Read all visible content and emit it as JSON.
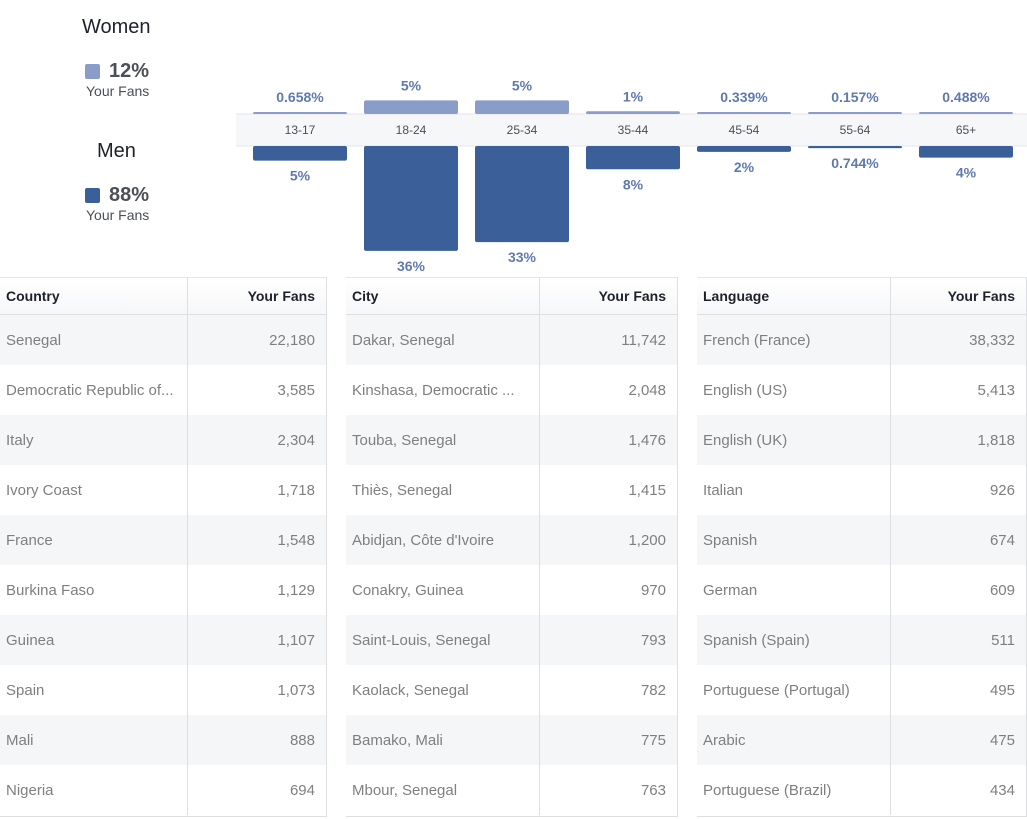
{
  "colors": {
    "women": "#8a9cc8",
    "men": "#3b5f98",
    "label": "#5f7aae"
  },
  "legend": {
    "women": {
      "title": "Women",
      "pct": "12%",
      "sub": "Your Fans"
    },
    "men": {
      "title": "Men",
      "pct": "88%",
      "sub": "Your Fans"
    }
  },
  "chart_data": {
    "type": "bar",
    "categories": [
      "13-17",
      "18-24",
      "25-34",
      "35-44",
      "45-54",
      "55-64",
      "65+"
    ],
    "series": [
      {
        "name": "Women",
        "values": [
          0.658,
          5,
          5,
          1,
          0.339,
          0.157,
          0.488
        ],
        "labels": [
          "0.658%",
          "5%",
          "5%",
          "1%",
          "0.339%",
          "0.157%",
          "0.488%"
        ]
      },
      {
        "name": "Men",
        "values": [
          5,
          36,
          33,
          8,
          2,
          0.744,
          4
        ],
        "labels": [
          "5%",
          "36%",
          "33%",
          "8%",
          "2%",
          "0.744%",
          "4%"
        ]
      }
    ]
  },
  "tables": [
    {
      "headers": [
        "Country",
        "Your Fans"
      ],
      "rows": [
        [
          "Senegal",
          "22,180"
        ],
        [
          "Democratic Republic of...",
          "3,585"
        ],
        [
          "Italy",
          "2,304"
        ],
        [
          "Ivory Coast",
          "1,718"
        ],
        [
          "France",
          "1,548"
        ],
        [
          "Burkina Faso",
          "1,129"
        ],
        [
          "Guinea",
          "1,107"
        ],
        [
          "Spain",
          "1,073"
        ],
        [
          "Mali",
          "888"
        ],
        [
          "Nigeria",
          "694"
        ]
      ]
    },
    {
      "headers": [
        "City",
        "Your Fans"
      ],
      "rows": [
        [
          "Dakar, Senegal",
          "11,742"
        ],
        [
          "Kinshasa, Democratic ...",
          "2,048"
        ],
        [
          "Touba, Senegal",
          "1,476"
        ],
        [
          "Thiès, Senegal",
          "1,415"
        ],
        [
          "Abidjan, Côte d'Ivoire",
          "1,200"
        ],
        [
          "Conakry, Guinea",
          "970"
        ],
        [
          "Saint-Louis, Senegal",
          "793"
        ],
        [
          "Kaolack, Senegal",
          "782"
        ],
        [
          "Bamako, Mali",
          "775"
        ],
        [
          "Mbour, Senegal",
          "763"
        ]
      ]
    },
    {
      "headers": [
        "Language",
        "Your Fans"
      ],
      "rows": [
        [
          "French (France)",
          "38,332"
        ],
        [
          "English (US)",
          "5,413"
        ],
        [
          "English (UK)",
          "1,818"
        ],
        [
          "Italian",
          "926"
        ],
        [
          "Spanish",
          "674"
        ],
        [
          "German",
          "609"
        ],
        [
          "Spanish (Spain)",
          "511"
        ],
        [
          "Portuguese (Portugal)",
          "495"
        ],
        [
          "Arabic",
          "475"
        ],
        [
          "Portuguese (Brazil)",
          "434"
        ]
      ]
    }
  ]
}
